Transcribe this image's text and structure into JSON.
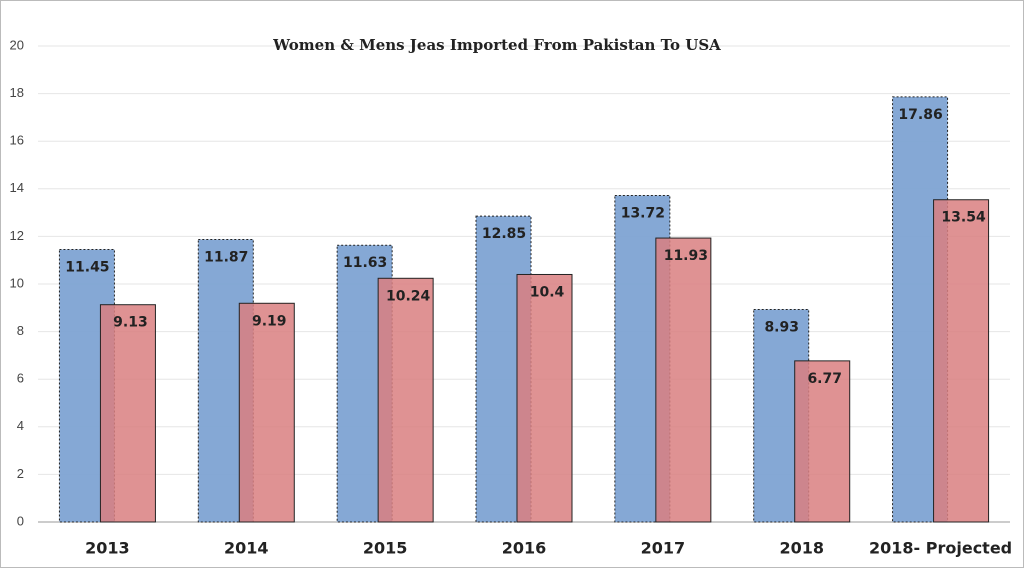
{
  "chart_data": {
    "type": "bar",
    "title": "Women & Mens Jeas Imported From Pakistan To USA",
    "categories": [
      "2013",
      "2014",
      "2015",
      "2016",
      "2017",
      "2018",
      "2018- Projected"
    ],
    "series": [
      {
        "color": "#7ea3d3",
        "values": [
          11.45,
          11.87,
          11.63,
          12.85,
          13.72,
          8.93,
          17.86
        ]
      },
      {
        "color": "#d97f80",
        "values": [
          9.13,
          9.19,
          10.24,
          10.4,
          11.93,
          6.77,
          13.54
        ]
      }
    ],
    "ylim": [
      0,
      20
    ],
    "yticks": [
      0,
      2,
      4,
      6,
      8,
      10,
      12,
      14,
      16,
      18,
      20
    ],
    "grid": true
  }
}
